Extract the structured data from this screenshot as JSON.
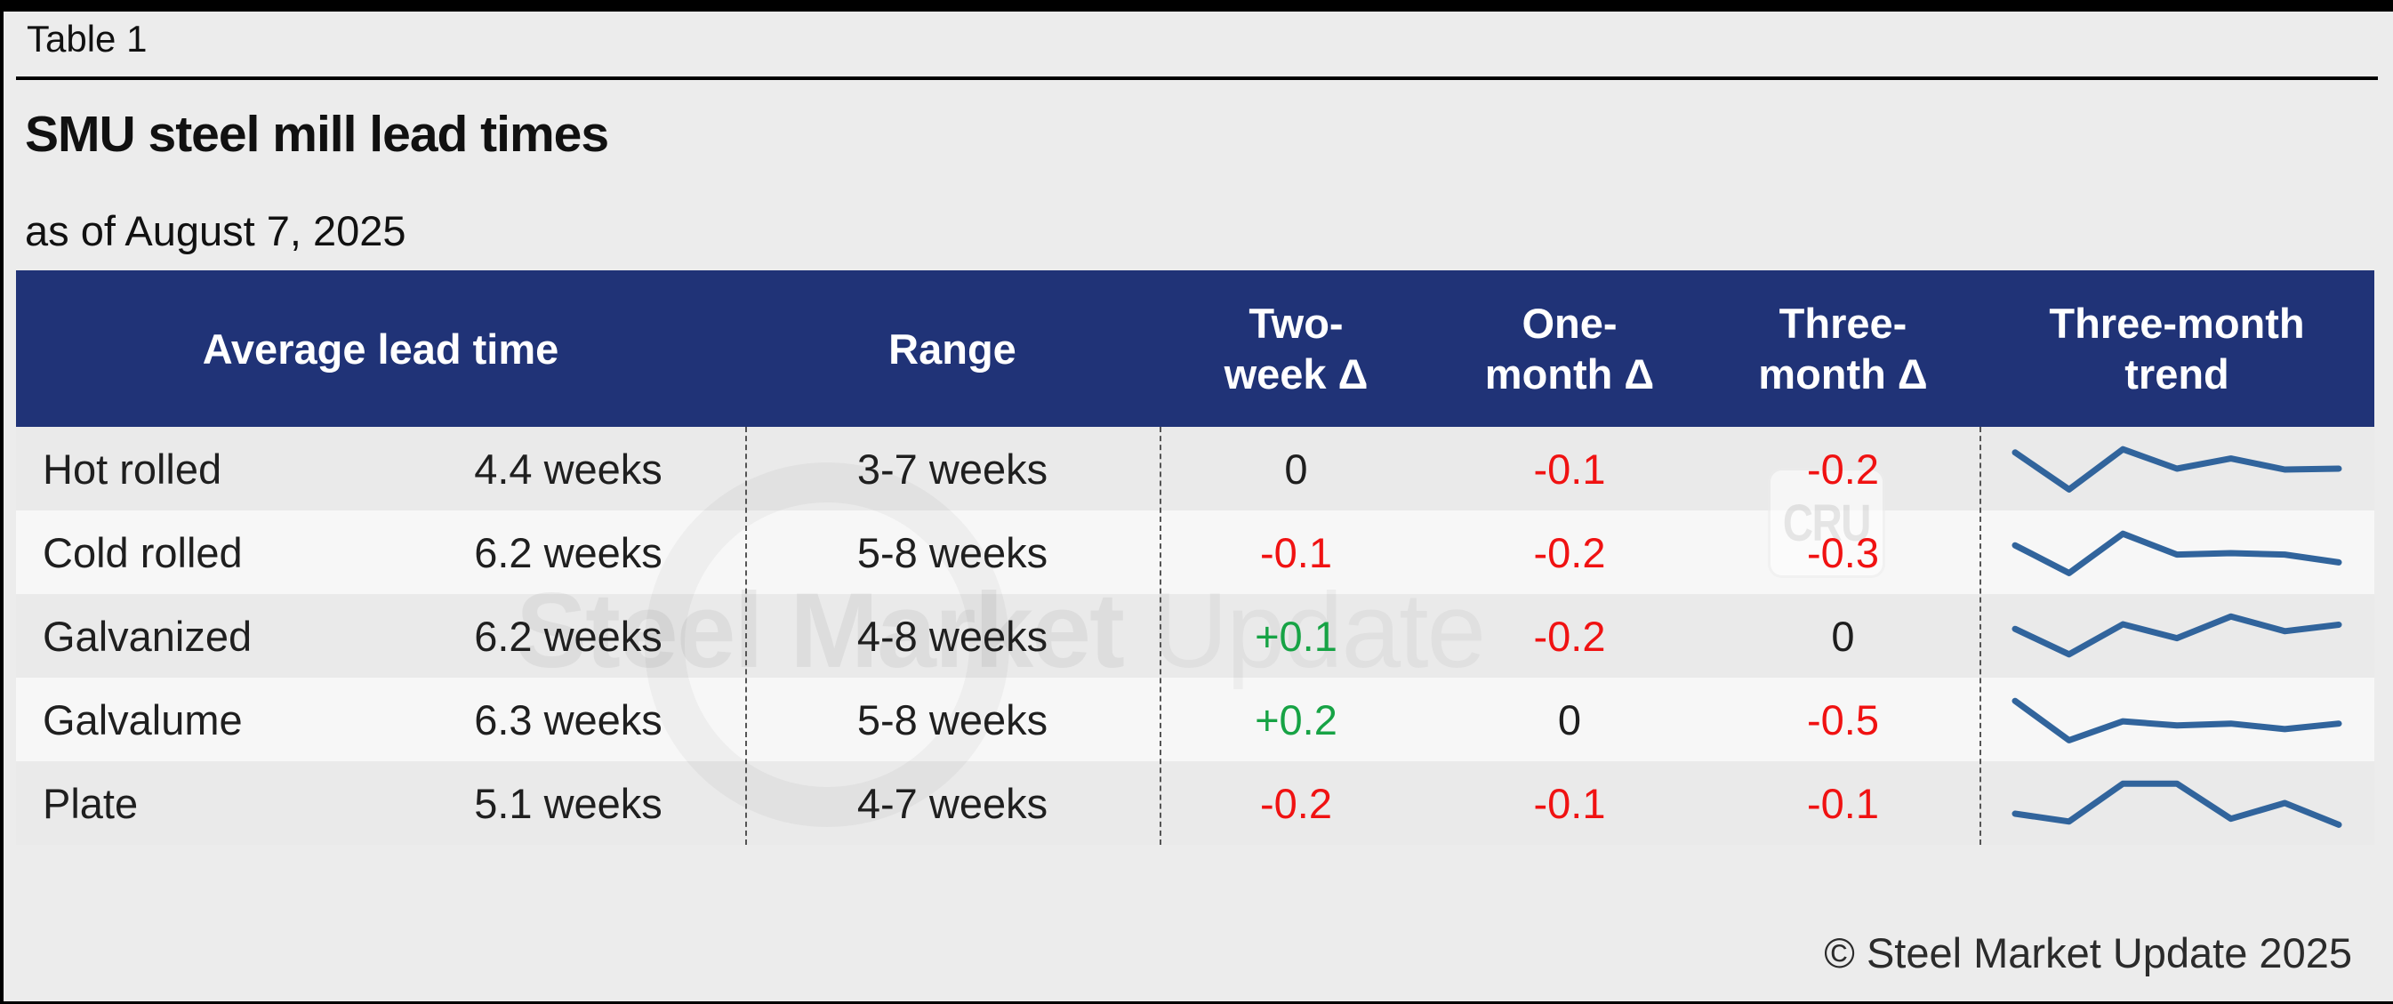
{
  "meta": {
    "table_label": "Table 1",
    "title": "SMU steel mill lead times",
    "subtitle": "as of August 7, 2025",
    "copyright": "© Steel Market Update 2025"
  },
  "colors": {
    "background": "#ececec",
    "header_bg": "#203377",
    "header_text": "#ffffff",
    "body_text": "#1f1f1f",
    "negative": "#f01212",
    "positive": "#17a345",
    "neutral": "#1e1e1e",
    "sparkline": "#31649c",
    "row_odd": "#eaeaea",
    "row_even": "#f7f7f7"
  },
  "watermarks": {
    "big_text_bold": "Steel Market",
    "big_text_light": "Update",
    "badge_text": "CRU"
  },
  "table": {
    "headers": {
      "avg_lead_time": "Average lead time",
      "range": "Range",
      "two_week": [
        "Two-",
        "week Δ"
      ],
      "one_month": [
        "One-",
        "month Δ"
      ],
      "three_month": [
        "Three-",
        "month Δ"
      ],
      "trend": [
        "Three-month",
        "trend"
      ]
    },
    "rows": [
      {
        "product": "Hot rolled",
        "avg": "4.4 weeks",
        "range": "3-7 weeks",
        "two_week": "0",
        "one_month": "-0.1",
        "three_month": "-0.2",
        "trend_points": [
          0.15,
          0.95,
          0.08,
          0.5,
          0.28,
          0.52,
          0.5
        ]
      },
      {
        "product": "Cold rolled",
        "avg": "6.2 weeks",
        "range": "5-8 weeks",
        "two_week": "-0.1",
        "one_month": "-0.2",
        "three_month": "-0.3",
        "trend_points": [
          0.35,
          0.95,
          0.1,
          0.55,
          0.52,
          0.55,
          0.72
        ]
      },
      {
        "product": "Galvanized",
        "avg": "6.2 weeks",
        "range": "4-8 weeks",
        "two_week": "+0.1",
        "one_month": "-0.2",
        "three_month": "0",
        "trend_points": [
          0.35,
          0.9,
          0.25,
          0.55,
          0.08,
          0.4,
          0.26
        ]
      },
      {
        "product": "Galvalume",
        "avg": "6.3 weeks",
        "range": "5-8 weeks",
        "two_week": "+0.2",
        "one_month": "0",
        "three_month": "-0.5",
        "trend_points": [
          0.1,
          0.95,
          0.54,
          0.63,
          0.59,
          0.71,
          0.59
        ]
      },
      {
        "product": "Plate",
        "avg": "5.1 weeks",
        "range": "4-7 weeks",
        "two_week": "-0.2",
        "one_month": "-0.1",
        "three_month": "-0.1",
        "trend_points": [
          0.73,
          0.9,
          0.08,
          0.08,
          0.84,
          0.5,
          0.97
        ]
      }
    ]
  },
  "chart_data": {
    "type": "table",
    "title": "SMU steel mill lead times",
    "subtitle": "as of August 7, 2025",
    "columns": [
      "Average lead time",
      "Range",
      "Two-week Δ",
      "One-month Δ",
      "Three-month Δ",
      "Three-month trend"
    ],
    "rows": [
      {
        "product": "Hot rolled",
        "average_lead_time_weeks": 4.4,
        "range_weeks": "3-7",
        "two_week_delta": 0,
        "one_month_delta": -0.1,
        "three_month_delta": -0.2
      },
      {
        "product": "Cold rolled",
        "average_lead_time_weeks": 6.2,
        "range_weeks": "5-8",
        "two_week_delta": -0.1,
        "one_month_delta": -0.2,
        "three_month_delta": -0.3
      },
      {
        "product": "Galvanized",
        "average_lead_time_weeks": 6.2,
        "range_weeks": "4-8",
        "two_week_delta": 0.1,
        "one_month_delta": -0.2,
        "three_month_delta": 0
      },
      {
        "product": "Galvalume",
        "average_lead_time_weeks": 6.3,
        "range_weeks": "5-8",
        "two_week_delta": 0.2,
        "one_month_delta": 0,
        "three_month_delta": -0.5
      },
      {
        "product": "Plate",
        "average_lead_time_weeks": 5.1,
        "range_weeks": "4-7",
        "two_week_delta": -0.2,
        "one_month_delta": -0.1,
        "three_month_delta": -0.1
      }
    ],
    "sparklines": {
      "note": "Three-month trend mini line charts, 7 points each, normalized 0=highest lead time, 1=lowest; no axes shown",
      "series": [
        {
          "name": "Hot rolled",
          "values": [
            0.15,
            0.95,
            0.08,
            0.5,
            0.28,
            0.52,
            0.5
          ]
        },
        {
          "name": "Cold rolled",
          "values": [
            0.35,
            0.95,
            0.1,
            0.55,
            0.52,
            0.55,
            0.72
          ]
        },
        {
          "name": "Galvanized",
          "values": [
            0.35,
            0.9,
            0.25,
            0.55,
            0.08,
            0.4,
            0.26
          ]
        },
        {
          "name": "Galvalume",
          "values": [
            0.1,
            0.95,
            0.54,
            0.63,
            0.59,
            0.71,
            0.59
          ]
        },
        {
          "name": "Plate",
          "values": [
            0.73,
            0.9,
            0.08,
            0.08,
            0.84,
            0.5,
            0.97
          ]
        }
      ],
      "line_color": "#31649c"
    },
    "legend_position": "none",
    "grid": false
  }
}
